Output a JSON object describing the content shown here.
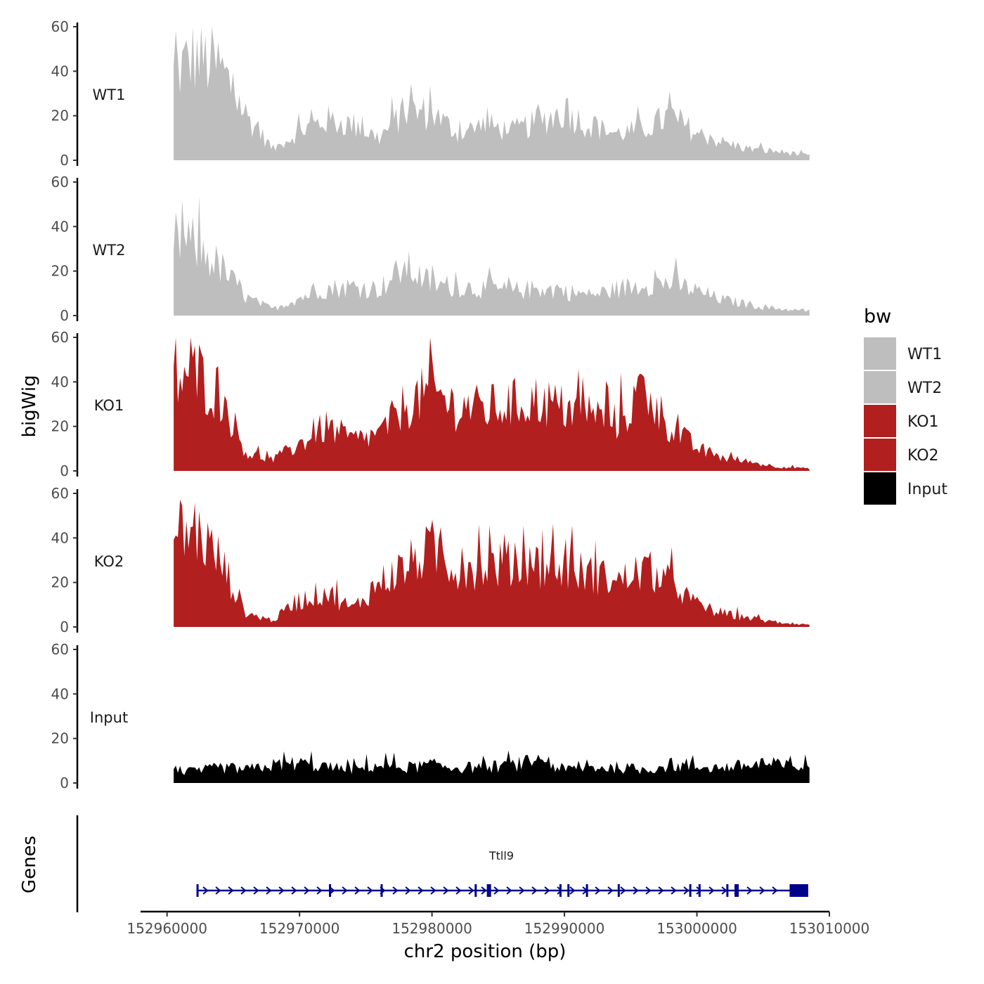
{
  "chart_data": {
    "type": "area",
    "ylabel": "bigWig",
    "xlabel": "chr2 position (bp)",
    "xlim": [
      152958000,
      153010000
    ],
    "data_range": [
      152960500,
      153008500
    ],
    "ylim": [
      0,
      60
    ],
    "y_ticks": [
      0,
      20,
      40,
      60
    ],
    "y_tick_labels": [
      "0",
      "20",
      "40",
      "60"
    ],
    "x_ticks": [
      152960000,
      152970000,
      152980000,
      152990000,
      153000000,
      153010000
    ],
    "x_tick_labels": [
      "152960000",
      "152970000",
      "152980000",
      "152990000",
      "153000000",
      "153010000"
    ],
    "legend": {
      "title": "bw",
      "position": "right",
      "entries": [
        {
          "label": "WT1",
          "color": "#bebebe"
        },
        {
          "label": "WT2",
          "color": "#bebebe"
        },
        {
          "label": "KO1",
          "color": "#b21f1f"
        },
        {
          "label": "KO2",
          "color": "#b21f1f"
        },
        {
          "label": "Input",
          "color": "#000000"
        }
      ]
    },
    "series": [
      {
        "name": "WT1",
        "color": "#bebebe",
        "x": [
          152960500,
          152962000,
          152964000,
          152966000,
          152968000,
          152970000,
          152972000,
          152974000,
          152976000,
          152978000,
          152980000,
          152982000,
          152984000,
          152986000,
          152988000,
          152990000,
          152992000,
          152994000,
          152996000,
          152998000,
          153000000,
          153002000,
          153004000,
          153006000,
          153008500
        ],
        "values": [
          38,
          47,
          42,
          20,
          5,
          13,
          18,
          16,
          10,
          22,
          21,
          12,
          16,
          13,
          17,
          22,
          15,
          12,
          14,
          20,
          12,
          8,
          5,
          4,
          2
        ]
      },
      {
        "name": "WT2",
        "color": "#bebebe",
        "x": [
          152960500,
          152962000,
          152964000,
          152966000,
          152968000,
          152970000,
          152972000,
          152974000,
          152976000,
          152978000,
          152980000,
          152982000,
          152984000,
          152986000,
          152988000,
          152990000,
          152992000,
          152994000,
          152996000,
          152998000,
          153000000,
          153002000,
          153004000,
          153006000,
          153008500
        ],
        "values": [
          34,
          32,
          22,
          8,
          3,
          8,
          12,
          13,
          12,
          22,
          14,
          13,
          12,
          11,
          12,
          11,
          9,
          12,
          14,
          15,
          11,
          7,
          5,
          3,
          2
        ]
      },
      {
        "name": "KO1",
        "color": "#b21f1f",
        "x": [
          152960500,
          152962000,
          152964000,
          152966000,
          152968000,
          152970000,
          152972000,
          152974000,
          152976000,
          152978000,
          152980000,
          152982000,
          152984000,
          152986000,
          152988000,
          152990000,
          152992000,
          152994000,
          152996000,
          152998000,
          153000000,
          153002000,
          153004000,
          153006000,
          153008500
        ],
        "values": [
          40,
          45,
          35,
          8,
          5,
          12,
          20,
          14,
          16,
          30,
          36,
          28,
          28,
          30,
          32,
          28,
          26,
          22,
          36,
          20,
          10,
          6,
          4,
          2,
          1
        ]
      },
      {
        "name": "KO2",
        "color": "#b21f1f",
        "x": [
          152960500,
          152962000,
          152964000,
          152966000,
          152968000,
          152970000,
          152972000,
          152974000,
          152976000,
          152978000,
          152980000,
          152982000,
          152984000,
          152986000,
          152988000,
          152990000,
          152992000,
          152994000,
          152996000,
          152998000,
          153000000,
          153002000,
          153004000,
          153006000,
          153008500
        ],
        "values": [
          38,
          45,
          30,
          6,
          3,
          12,
          16,
          8,
          20,
          27,
          35,
          26,
          28,
          28,
          28,
          26,
          24,
          20,
          26,
          20,
          10,
          6,
          4,
          2,
          1
        ]
      },
      {
        "name": "Input",
        "color": "#000000",
        "x": [
          152960500,
          152962000,
          152964000,
          152966000,
          152968000,
          152970000,
          152972000,
          152974000,
          152976000,
          152978000,
          152980000,
          152982000,
          152984000,
          152986000,
          152988000,
          152990000,
          152992000,
          152994000,
          152996000,
          152998000,
          153000000,
          153002000,
          153004000,
          153006000,
          153008500
        ],
        "values": [
          6,
          5,
          7,
          6,
          8,
          9,
          7,
          6,
          8,
          7,
          8,
          7,
          7,
          8,
          10,
          6,
          7,
          7,
          6,
          8,
          7,
          7,
          8,
          8,
          7
        ]
      }
    ],
    "genes": {
      "track_label": "Genes",
      "items": [
        {
          "name": "Ttll9",
          "start": 152962300,
          "end": 153008400,
          "strand": "+",
          "color": "#00008b"
        }
      ]
    }
  }
}
